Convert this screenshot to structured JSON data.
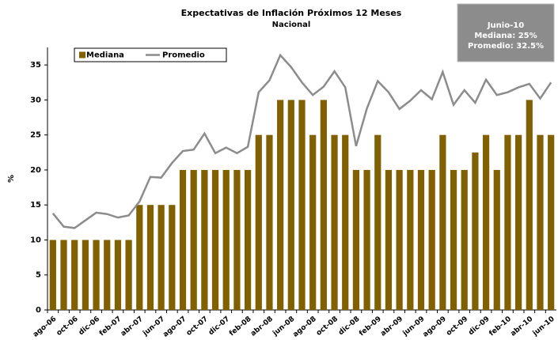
{
  "chart_data": {
    "type": "bar_line",
    "title": "Expectativas de Inflación Próximos 12 Meses",
    "subtitle": "Nacional",
    "ylabel": "%",
    "annotation": [
      "Junio-10",
      "Mediana: 25%",
      "Promedio: 32.5%"
    ],
    "categories": [
      "ago-06",
      null,
      "oct-06",
      null,
      "dic-06",
      null,
      "feb-07",
      null,
      "abr-07",
      null,
      "jun-07",
      null,
      "ago-07",
      null,
      "oct-07",
      null,
      "dic-07",
      null,
      "feb-08",
      null,
      "abr-08",
      null,
      "jun-08",
      null,
      "ago-08",
      null,
      "oct-08",
      null,
      "dic-08",
      null,
      "feb-09",
      null,
      "abr-09",
      null,
      "jun-09",
      null,
      "ago-09",
      null,
      "oct-09",
      null,
      "dic-09",
      null,
      "feb-10",
      null,
      "abr-10",
      null,
      "jun-10"
    ],
    "series": [
      {
        "name": "Mediana",
        "kind": "bar",
        "color": "#806000",
        "values": [
          10,
          10,
          10,
          10,
          10,
          10,
          10,
          10,
          15,
          15,
          15,
          15,
          20,
          20,
          20,
          20,
          20,
          20,
          20,
          25,
          25,
          30,
          30,
          30,
          25,
          30,
          25,
          25,
          20,
          20,
          25,
          20,
          20,
          20,
          20,
          20,
          25,
          20,
          20,
          22.5,
          25,
          20,
          25,
          25,
          30,
          25,
          25
        ]
      },
      {
        "name": "Promedio",
        "kind": "line",
        "color": "#8c8c8c",
        "values": [
          13.8,
          11.9,
          11.7,
          12.8,
          13.9,
          13.7,
          13.2,
          13.5,
          15.5,
          19,
          18.9,
          21,
          22.7,
          22.9,
          25.2,
          22.4,
          23.2,
          22.4,
          23.3,
          31.1,
          32.8,
          36.4,
          34.7,
          32.5,
          30.7,
          31.9,
          34.1,
          31.8,
          23.4,
          28.8,
          32.7,
          31.1,
          28.7,
          29.9,
          31.4,
          30.1,
          34,
          29.3,
          31.4,
          29.6,
          32.9,
          30.7,
          31.1,
          31.8,
          32.3,
          30.2,
          32.5
        ]
      }
    ],
    "ylim": [
      0,
      37.5
    ],
    "yticks": [
      0,
      5,
      10,
      15,
      20,
      25,
      30,
      35
    ],
    "grid": false
  }
}
